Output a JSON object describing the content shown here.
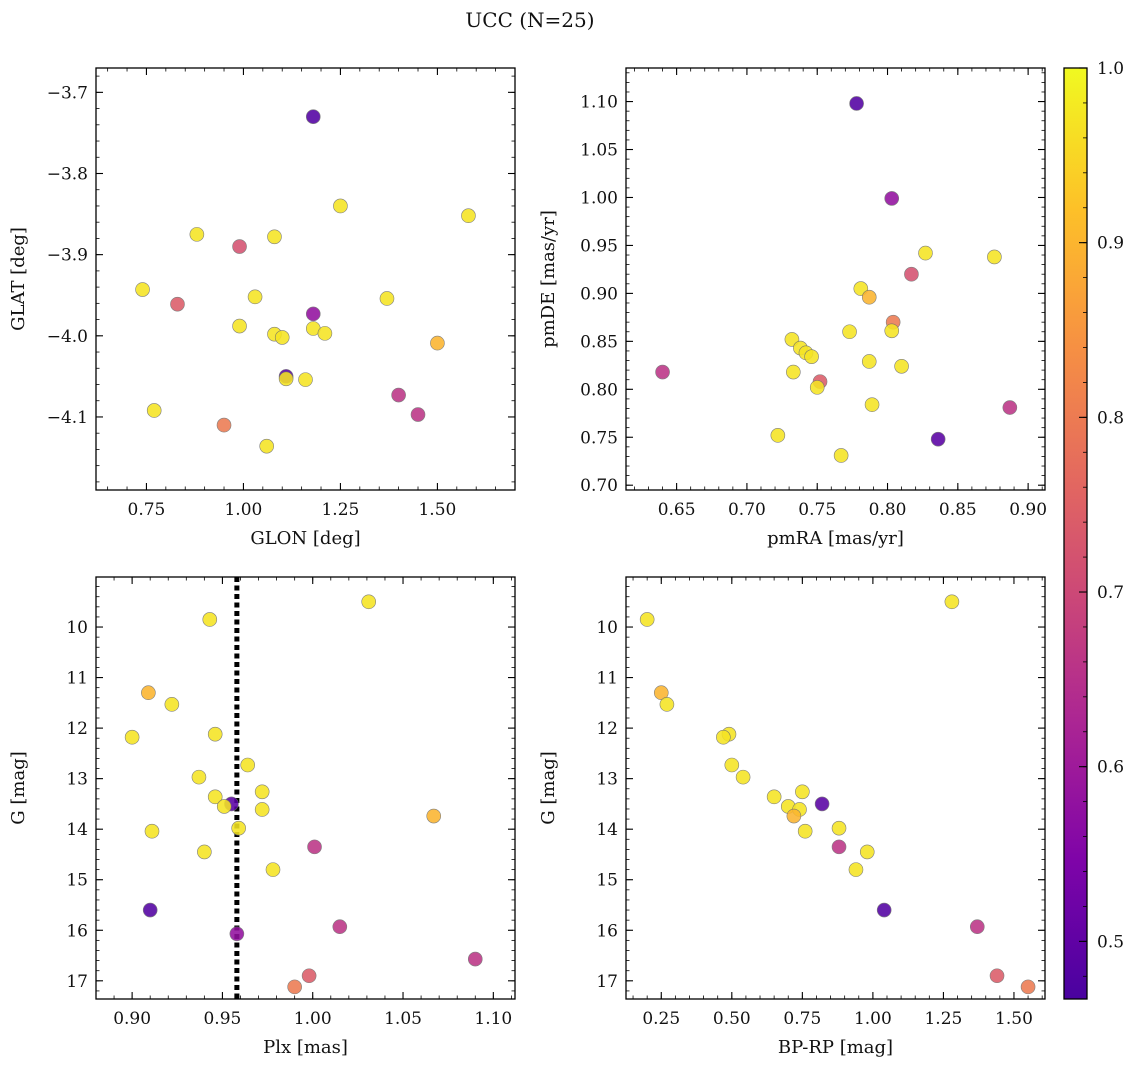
{
  "figure_title": "UCC (N=25)",
  "colorbar": {
    "min": 0.467,
    "max": 1.0,
    "ticks": [
      0.5,
      0.6,
      0.7,
      0.8,
      0.9,
      1.0
    ],
    "tick_labels": [
      "0.5",
      "0.6",
      "0.7",
      "0.8",
      "0.9",
      "1.0"
    ],
    "colormap": "plasma"
  },
  "chart_data": [
    {
      "type": "scatter",
      "xlabel": "GLON [deg]",
      "ylabel": "GLAT [deg]",
      "xlim": [
        0.62,
        1.7
      ],
      "ylim": [
        -4.19,
        -3.67
      ],
      "xticks": [
        0.75,
        1.0,
        1.25,
        1.5
      ],
      "xtick_labels": [
        "0.75",
        "1.00",
        "1.25",
        "1.50"
      ],
      "yticks": [
        -3.7,
        -3.8,
        -3.9,
        -4.0,
        -4.1
      ],
      "ytick_labels": [
        "−3.7",
        "−3.8",
        "−3.9",
        "−4.0",
        "−4.1"
      ],
      "points": [
        {
          "x": 1.18,
          "y": -3.73,
          "c": 0.48
        },
        {
          "x": 1.58,
          "y": -3.852,
          "c": 0.97
        },
        {
          "x": 1.25,
          "y": -3.84,
          "c": 0.97
        },
        {
          "x": 0.88,
          "y": -3.875,
          "c": 0.97
        },
        {
          "x": 1.08,
          "y": -3.878,
          "c": 0.97
        },
        {
          "x": 0.99,
          "y": -3.89,
          "c": 0.72
        },
        {
          "x": 0.74,
          "y": -3.943,
          "c": 0.97
        },
        {
          "x": 0.83,
          "y": -3.961,
          "c": 0.74
        },
        {
          "x": 1.03,
          "y": -3.952,
          "c": 0.97
        },
        {
          "x": 1.37,
          "y": -3.954,
          "c": 0.97
        },
        {
          "x": 1.18,
          "y": -3.973,
          "c": 0.58
        },
        {
          "x": 0.99,
          "y": -3.988,
          "c": 0.97
        },
        {
          "x": 1.08,
          "y": -3.998,
          "c": 0.97
        },
        {
          "x": 1.1,
          "y": -4.002,
          "c": 0.97
        },
        {
          "x": 1.18,
          "y": -3.991,
          "c": 0.97
        },
        {
          "x": 1.21,
          "y": -3.997,
          "c": 0.97
        },
        {
          "x": 1.5,
          "y": -4.009,
          "c": 0.9
        },
        {
          "x": 1.11,
          "y": -4.05,
          "c": 0.49
        },
        {
          "x": 1.11,
          "y": -4.053,
          "c": 0.97
        },
        {
          "x": 1.16,
          "y": -4.054,
          "c": 0.97
        },
        {
          "x": 1.4,
          "y": -4.073,
          "c": 0.66
        },
        {
          "x": 0.77,
          "y": -4.092,
          "c": 0.97
        },
        {
          "x": 1.45,
          "y": -4.097,
          "c": 0.66
        },
        {
          "x": 0.95,
          "y": -4.11,
          "c": 0.8
        },
        {
          "x": 1.06,
          "y": -4.136,
          "c": 0.97
        }
      ]
    },
    {
      "type": "scatter",
      "xlabel": "pmRA [mas/yr]",
      "ylabel": "pmDE [mas/yr]",
      "xlim": [
        0.614,
        0.912
      ],
      "ylim": [
        0.695,
        1.135
      ],
      "xticks": [
        0.65,
        0.7,
        0.75,
        0.8,
        0.85,
        0.9
      ],
      "xtick_labels": [
        "0.65",
        "0.70",
        "0.75",
        "0.80",
        "0.85",
        "0.90"
      ],
      "yticks": [
        0.7,
        0.75,
        0.8,
        0.85,
        0.9,
        0.95,
        1.0,
        1.05,
        1.1
      ],
      "ytick_labels": [
        "0.70",
        "0.75",
        "0.80",
        "0.85",
        "0.90",
        "0.95",
        "1.00",
        "1.05",
        "1.10"
      ],
      "points": [
        {
          "x": 0.778,
          "y": 1.098,
          "c": 0.48
        },
        {
          "x": 0.803,
          "y": 0.999,
          "c": 0.58
        },
        {
          "x": 0.827,
          "y": 0.942,
          "c": 0.97
        },
        {
          "x": 0.876,
          "y": 0.938,
          "c": 0.97
        },
        {
          "x": 0.817,
          "y": 0.92,
          "c": 0.72
        },
        {
          "x": 0.781,
          "y": 0.905,
          "c": 0.97
        },
        {
          "x": 0.787,
          "y": 0.896,
          "c": 0.9
        },
        {
          "x": 0.804,
          "y": 0.87,
          "c": 0.8
        },
        {
          "x": 0.803,
          "y": 0.861,
          "c": 0.97
        },
        {
          "x": 0.773,
          "y": 0.86,
          "c": 0.97
        },
        {
          "x": 0.732,
          "y": 0.852,
          "c": 0.97
        },
        {
          "x": 0.738,
          "y": 0.843,
          "c": 0.97
        },
        {
          "x": 0.742,
          "y": 0.838,
          "c": 0.97
        },
        {
          "x": 0.746,
          "y": 0.834,
          "c": 0.97
        },
        {
          "x": 0.787,
          "y": 0.829,
          "c": 0.97
        },
        {
          "x": 0.81,
          "y": 0.824,
          "c": 0.97
        },
        {
          "x": 0.64,
          "y": 0.818,
          "c": 0.66
        },
        {
          "x": 0.733,
          "y": 0.818,
          "c": 0.97
        },
        {
          "x": 0.752,
          "y": 0.808,
          "c": 0.74
        },
        {
          "x": 0.75,
          "y": 0.802,
          "c": 0.97
        },
        {
          "x": 0.789,
          "y": 0.784,
          "c": 0.97
        },
        {
          "x": 0.887,
          "y": 0.781,
          "c": 0.66
        },
        {
          "x": 0.722,
          "y": 0.752,
          "c": 0.97
        },
        {
          "x": 0.836,
          "y": 0.748,
          "c": 0.49
        },
        {
          "x": 0.767,
          "y": 0.731,
          "c": 0.97
        }
      ]
    },
    {
      "type": "scatter",
      "xlabel": "Plx [mas]",
      "ylabel": "G [mag]",
      "xlim": [
        0.88,
        1.112
      ],
      "ylim": [
        17.36,
        9.01
      ],
      "yaxis_inverted": true,
      "xticks": [
        0.9,
        0.95,
        1.0,
        1.05,
        1.1
      ],
      "xtick_labels": [
        "0.90",
        "0.95",
        "1.00",
        "1.05",
        "1.10"
      ],
      "yticks": [
        10,
        11,
        12,
        13,
        14,
        15,
        16,
        17
      ],
      "ytick_labels": [
        "10",
        "11",
        "12",
        "13",
        "14",
        "15",
        "16",
        "17"
      ],
      "vline": {
        "x": 0.958,
        "style": "dotted"
      },
      "points": [
        {
          "x": 1.031,
          "y": 9.5,
          "c": 0.97
        },
        {
          "x": 0.943,
          "y": 9.85,
          "c": 0.97
        },
        {
          "x": 0.909,
          "y": 11.3,
          "c": 0.9
        },
        {
          "x": 0.922,
          "y": 11.53,
          "c": 0.97
        },
        {
          "x": 0.946,
          "y": 12.12,
          "c": 0.97
        },
        {
          "x": 0.9,
          "y": 12.18,
          "c": 0.97
        },
        {
          "x": 0.964,
          "y": 12.73,
          "c": 0.97
        },
        {
          "x": 0.937,
          "y": 12.97,
          "c": 0.97
        },
        {
          "x": 0.972,
          "y": 13.26,
          "c": 0.97
        },
        {
          "x": 0.946,
          "y": 13.36,
          "c": 0.97
        },
        {
          "x": 0.955,
          "y": 13.5,
          "c": 0.49
        },
        {
          "x": 0.951,
          "y": 13.55,
          "c": 0.97
        },
        {
          "x": 0.972,
          "y": 13.61,
          "c": 0.97
        },
        {
          "x": 1.067,
          "y": 13.74,
          "c": 0.9
        },
        {
          "x": 0.959,
          "y": 13.98,
          "c": 0.97
        },
        {
          "x": 0.911,
          "y": 14.04,
          "c": 0.97
        },
        {
          "x": 1.001,
          "y": 14.35,
          "c": 0.66
        },
        {
          "x": 0.94,
          "y": 14.45,
          "c": 0.97
        },
        {
          "x": 0.978,
          "y": 14.8,
          "c": 0.97
        },
        {
          "x": 0.91,
          "y": 15.6,
          "c": 0.48
        },
        {
          "x": 1.015,
          "y": 15.93,
          "c": 0.66
        },
        {
          "x": 0.958,
          "y": 16.07,
          "c": 0.58
        },
        {
          "x": 1.09,
          "y": 16.57,
          "c": 0.66
        },
        {
          "x": 0.998,
          "y": 16.9,
          "c": 0.74
        },
        {
          "x": 0.99,
          "y": 17.12,
          "c": 0.8
        }
      ]
    },
    {
      "type": "scatter",
      "xlabel": "BP-RP [mag]",
      "ylabel": "G [mag]",
      "xlim": [
        0.125,
        1.61
      ],
      "ylim": [
        17.36,
        9.01
      ],
      "yaxis_inverted": true,
      "xticks": [
        0.25,
        0.5,
        0.75,
        1.0,
        1.25,
        1.5
      ],
      "xtick_labels": [
        "0.25",
        "0.50",
        "0.75",
        "1.00",
        "1.25",
        "1.50"
      ],
      "yticks": [
        10,
        11,
        12,
        13,
        14,
        15,
        16,
        17
      ],
      "ytick_labels": [
        "10",
        "11",
        "12",
        "13",
        "14",
        "15",
        "16",
        "17"
      ],
      "points": [
        {
          "x": 1.28,
          "y": 9.5,
          "c": 0.97
        },
        {
          "x": 0.2,
          "y": 9.85,
          "c": 0.97
        },
        {
          "x": 0.25,
          "y": 11.3,
          "c": 0.9
        },
        {
          "x": 0.27,
          "y": 11.53,
          "c": 0.97
        },
        {
          "x": 0.49,
          "y": 12.12,
          "c": 0.97
        },
        {
          "x": 0.47,
          "y": 12.18,
          "c": 0.97
        },
        {
          "x": 0.5,
          "y": 12.73,
          "c": 0.97
        },
        {
          "x": 0.54,
          "y": 12.97,
          "c": 0.97
        },
        {
          "x": 0.75,
          "y": 13.26,
          "c": 0.97
        },
        {
          "x": 0.65,
          "y": 13.36,
          "c": 0.97
        },
        {
          "x": 0.82,
          "y": 13.5,
          "c": 0.49
        },
        {
          "x": 0.7,
          "y": 13.55,
          "c": 0.97
        },
        {
          "x": 0.74,
          "y": 13.61,
          "c": 0.97
        },
        {
          "x": 0.72,
          "y": 13.74,
          "c": 0.9
        },
        {
          "x": 0.88,
          "y": 13.98,
          "c": 0.97
        },
        {
          "x": 0.76,
          "y": 14.04,
          "c": 0.97
        },
        {
          "x": 0.88,
          "y": 14.35,
          "c": 0.66
        },
        {
          "x": 0.98,
          "y": 14.45,
          "c": 0.97
        },
        {
          "x": 0.94,
          "y": 14.8,
          "c": 0.97
        },
        {
          "x": 1.04,
          "y": 15.6,
          "c": 0.48
        },
        {
          "x": 1.37,
          "y": 15.93,
          "c": 0.66
        },
        {
          "x": 1.44,
          "y": 16.9,
          "c": 0.74
        },
        {
          "x": 1.55,
          "y": 17.12,
          "c": 0.8
        }
      ]
    }
  ]
}
